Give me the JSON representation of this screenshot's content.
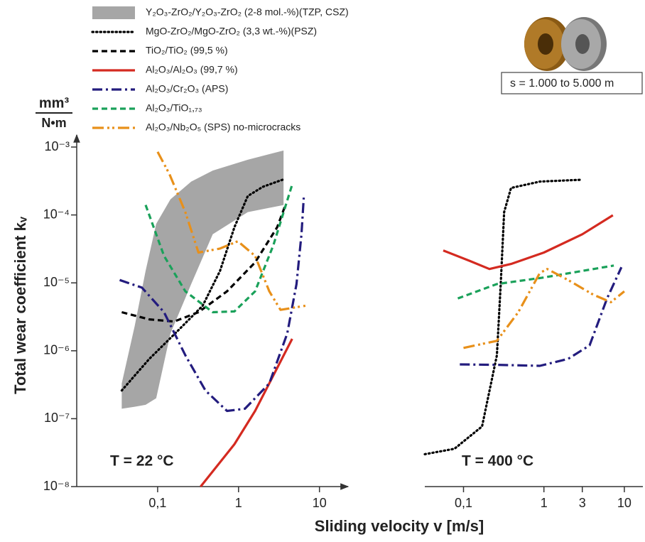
{
  "chart_data": {
    "type": "line",
    "log_x": true,
    "log_y": true,
    "y_label": "Total wear coefficient kᵥ",
    "y_unit_top": "mm³",
    "y_unit_bottom": "N•m",
    "x_label": "Sliding velocity v [m/s]",
    "inset_label": "s = 1.000 to 5.000 m",
    "ylim": [
      1e-08,
      0.001
    ],
    "yticks": [
      {
        "value": 1e-08,
        "label": "10⁻⁸"
      },
      {
        "value": 1e-07,
        "label": "10⁻⁷"
      },
      {
        "value": 1e-06,
        "label": "10⁻⁶"
      },
      {
        "value": 1e-05,
        "label": "10⁻⁵"
      },
      {
        "value": 0.0001,
        "label": "10⁻⁴"
      },
      {
        "value": 0.001,
        "label": "10⁻³"
      }
    ],
    "legend": "top-left",
    "panels": [
      {
        "annotation": "T = 22 °C",
        "xlim": [
          0.01,
          20
        ],
        "xticks": [
          {
            "value": 0.1,
            "label": "0,1"
          },
          1,
          10
        ]
      },
      {
        "annotation": "T = 400 °C",
        "xlim": [
          0.033,
          17
        ],
        "xticks": [
          {
            "value": 0.1,
            "label": "0,1"
          },
          1,
          3,
          10
        ]
      }
    ],
    "series": [
      {
        "name": "Y₂O₃-ZrO₂/Y₂O₃-ZrO₂ (2-8 mol.-%)(TZP, CSZ)",
        "color": "#a6a6a6",
        "style": "band",
        "data": [
          {
            "x": [
              0.036,
              0.052,
              0.071,
              0.096,
              0.144,
              0.26,
              0.48,
              1.3,
              3.6
            ],
            "lower": [
              1.4e-07,
              1.5e-07,
              1.6e-07,
              2e-07,
              1.8e-06,
              9.6e-06,
              5.2e-05,
              0.00011,
              0.00014
            ],
            "upper": [
              3.3e-07,
              2.3e-06,
              1.5e-05,
              7.4e-05,
              0.00017,
              0.00031,
              0.00045,
              0.00065,
              0.00089
            ]
          },
          null
        ]
      },
      {
        "name": "MgO-ZrO₂/MgO-ZrO₂ (3,3 wt.-%)(PSZ)",
        "color": "#000000",
        "style": "dotted",
        "data": [
          {
            "x": [
              0.036,
              0.079,
              0.18,
              0.36,
              0.59,
              0.89,
              1.3,
              2.0,
              3.5
            ],
            "values": [
              2.6e-07,
              7.6e-07,
              2e-06,
              4.6e-06,
              1.5e-05,
              6.6e-05,
              0.00019,
              0.00026,
              0.00033
            ]
          },
          {
            "x": [
              0.033,
              0.077,
              0.17,
              0.26,
              0.29,
              0.32,
              0.39,
              0.89,
              3.0
            ],
            "values": [
              3e-08,
              3.6e-08,
              7.7e-08,
              8.6e-07,
              9.6e-06,
              0.00011,
              0.00025,
              0.00031,
              0.00033
            ]
          }
        ]
      },
      {
        "name": "TiO₂/TiO₂ (99,5 %)",
        "color": "#000000",
        "style": "dashed",
        "data": [
          {
            "x": [
              0.036,
              0.079,
              0.16,
              0.32,
              0.72,
              1.6,
              3.0,
              3.8
            ],
            "values": [
              3.7e-06,
              2.9e-06,
              2.7e-06,
              3.7e-06,
              7.5e-06,
              2e-05,
              6.6e-05,
              0.00014
            ]
          },
          null
        ]
      },
      {
        "name": "Al₂O₃/Al₂O₃ (99,7 %)",
        "color": "#d42a20",
        "style": "solid",
        "data": [
          {
            "x": [
              0.34,
              0.89,
              1.6,
              4.6
            ],
            "values": [
              1e-08,
              4.2e-08,
              1.3e-07,
              1.5e-06
            ]
          },
          {
            "x": [
              0.056,
              0.12,
              0.21,
              0.39,
              1.0,
              3.0,
              7.2
            ],
            "values": [
              3e-05,
              2.1e-05,
              1.6e-05,
              1.9e-05,
              2.8e-05,
              5.2e-05,
              9.9e-05
            ]
          }
        ]
      },
      {
        "name": "Al₂O₃/Cr₂O₃ (APS)",
        "color": "#231c7e",
        "style": "dash-dot",
        "data": [
          {
            "x": [
              0.034,
              0.064,
              0.12,
              0.22,
              0.39,
              0.72,
              1.2,
              2.4,
              4.0,
              5.2,
              6.0,
              6.4
            ],
            "values": [
              1.1e-05,
              8.5e-06,
              3.7e-06,
              8.6e-07,
              2.6e-07,
              1.3e-07,
              1.4e-07,
              3.3e-07,
              1.8e-06,
              9.6e-06,
              5.2e-05,
              0.00018
            ]
          },
          {
            "x": [
              0.09,
              0.26,
              0.89,
              2.0,
              3.7,
              6.1,
              9.2
            ],
            "values": [
              6.3e-07,
              6.2e-07,
              6e-07,
              7.6e-07,
              1.2e-06,
              5.9e-06,
              1.7e-05
            ]
          }
        ]
      },
      {
        "name": "Al₂O₃/TiO₁,₇₃",
        "color": "#1aa15a",
        "style": "dashed",
        "data": [
          {
            "x": [
              0.071,
              0.12,
              0.22,
              0.48,
              0.89,
              1.6,
              2.7,
              4.6
            ],
            "values": [
              0.00014,
              2.5e-05,
              7.5e-06,
              3.7e-06,
              3.8e-06,
              7.5e-06,
              3.6e-05,
              0.00028
            ]
          },
          {
            "x": [
              0.085,
              0.26,
              1.0,
              3.0,
              7.4
            ],
            "values": [
              5.9e-06,
              9.6e-06,
              1.2e-05,
              1.5e-05,
              1.8e-05
            ]
          }
        ]
      },
      {
        "name": "Al₂O₃/Nb₂O₅ (SPS) no-microcracks",
        "color": "#e8901a",
        "style": "dash-dot-dot",
        "data": [
          {
            "x": [
              0.1,
              0.14,
              0.22,
              0.32,
              0.59,
              0.98,
              1.6,
              2.4,
              3.3,
              6.7
            ],
            "values": [
              0.00085,
              0.0004,
              0.00011,
              2.8e-05,
              3.2e-05,
              4.1e-05,
              2.5e-05,
              7.5e-06,
              4e-06,
              4.6e-06
            ]
          },
          {
            "x": [
              0.1,
              0.26,
              0.48,
              0.89,
              1.1,
              2.0,
              4.1,
              6.8,
              10
            ],
            "values": [
              1.1e-06,
              1.4e-06,
              3.7e-06,
              1.4e-05,
              1.6e-05,
              1.1e-05,
              6.7e-06,
              5.2e-06,
              7.5e-06
            ]
          }
        ]
      }
    ]
  }
}
